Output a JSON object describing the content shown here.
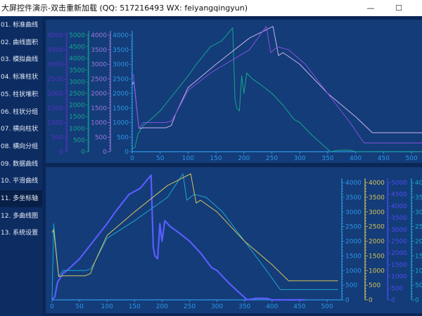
{
  "window": {
    "title": "大屏控件演示-双击重新加载 (QQ: 517216493  WX: feiyangqingyun)",
    "minimize": "—",
    "maximize": "☐"
  },
  "sidebar": {
    "active_index": 10,
    "items": [
      {
        "label": "01. 标准曲线"
      },
      {
        "label": "02. 曲线面积"
      },
      {
        "label": "03. 模拟曲线"
      },
      {
        "label": "04. 标准柱状"
      },
      {
        "label": "05. 柱状堆积"
      },
      {
        "label": "06. 柱状分组"
      },
      {
        "label": "07. 横向柱状"
      },
      {
        "label": "08. 横向分组"
      },
      {
        "label": "09. 数据曲线"
      },
      {
        "label": "10. 平滑曲线"
      },
      {
        "label": "11. 多坐标轴"
      },
      {
        "label": "12. 多曲线图"
      },
      {
        "label": "13. 系统设置"
      }
    ]
  },
  "chart_data": [
    {
      "type": "line",
      "title": "",
      "xlim": [
        0,
        525
      ],
      "x_ticks": [
        0,
        50,
        100,
        150,
        200,
        250,
        300,
        350,
        400,
        450,
        500
      ],
      "y_axes": [
        {
          "side": "left",
          "color": "#5a30c4",
          "max": 4000,
          "ticks": [
            0,
            500,
            1000,
            1500,
            2000,
            2500,
            3000,
            3500,
            4000
          ]
        },
        {
          "side": "left",
          "color": "#17a58c",
          "max": 5000,
          "ticks": [
            0,
            500,
            1000,
            1500,
            2000,
            2500,
            3000,
            3500,
            4000,
            4500,
            5000
          ]
        },
        {
          "side": "left",
          "color": "#9a78dc",
          "max": 4000,
          "ticks": [
            0,
            500,
            1000,
            1500,
            2000,
            2500,
            3000,
            3500,
            4000
          ]
        },
        {
          "side": "left",
          "color": "#2f96e6",
          "max": 4000,
          "ticks": [
            0,
            500,
            1000,
            1500,
            2000,
            2500,
            3000,
            3500,
            4000
          ]
        }
      ],
      "series": [
        {
          "color": "#17a58c",
          "width": 1,
          "x": [
            0,
            5,
            10,
            20,
            30,
            50,
            75,
            100,
            115,
            140,
            160,
            180,
            184,
            187,
            192,
            196,
            200,
            205,
            215,
            230,
            250,
            270,
            290,
            300,
            320,
            340,
            355,
            370,
            390,
            400,
            520
          ],
          "y": [
            100,
            150,
            600,
            900,
            1050,
            1400,
            2000,
            2600,
            3000,
            3600,
            3800,
            4250,
            1800,
            1500,
            1400,
            2600,
            2000,
            2700,
            2500,
            2300,
            2000,
            1600,
            1100,
            1000,
            600,
            250,
            0,
            50,
            50,
            0,
            0
          ]
        },
        {
          "color": "#c9b0ee",
          "width": 1,
          "x": [
            0,
            3,
            12,
            20,
            60,
            70,
            78,
            100,
            150,
            210,
            252,
            262,
            270,
            300,
            350,
            400,
            430,
            520
          ],
          "y": [
            2300,
            2400,
            800,
            820,
            820,
            900,
            1300,
            2200,
            3000,
            3900,
            4300,
            3300,
            3400,
            3000,
            2000,
            1200,
            650,
            650
          ]
        },
        {
          "color": "#8a4fe0",
          "width": 1,
          "x": [
            0,
            2,
            12,
            20,
            60,
            70,
            78,
            100,
            140,
            210,
            240,
            248,
            260,
            280,
            310,
            350,
            390,
            415,
            520
          ],
          "y": [
            2600,
            2650,
            800,
            1000,
            1000,
            1050,
            1300,
            2100,
            2700,
            3500,
            4300,
            3400,
            3600,
            3500,
            3000,
            2000,
            1000,
            300,
            300
          ]
        }
      ]
    },
    {
      "type": "line",
      "title": "",
      "xlim": [
        0,
        525
      ],
      "x_ticks": [
        0,
        50,
        100,
        150,
        200,
        250,
        300,
        350,
        400,
        450,
        500
      ],
      "y_axes": [
        {
          "side": "right",
          "color": "#2f96e6",
          "max": 4000,
          "ticks": [
            0,
            500,
            1000,
            1500,
            2000,
            2500,
            3000,
            3500,
            4000
          ]
        },
        {
          "side": "right",
          "color": "#d6c25a",
          "max": 4000,
          "ticks": [
            0,
            500,
            1000,
            1500,
            2000,
            2500,
            3000,
            3500,
            4000
          ]
        },
        {
          "side": "right",
          "color": "#4e4cf2",
          "max": 5000,
          "ticks": [
            0,
            500,
            1000,
            1500,
            2000,
            2500,
            3000,
            3500,
            4000,
            4500,
            5000
          ]
        },
        {
          "side": "right",
          "color": "#1ea6cf",
          "max": 4000,
          "ticks": [
            0,
            500,
            1000,
            1500,
            2000,
            2500,
            3000,
            3500,
            4000
          ]
        }
      ],
      "series": [
        {
          "color": "#5a5cff",
          "width": 2.2,
          "x": [
            0,
            5,
            10,
            20,
            30,
            50,
            75,
            100,
            115,
            140,
            160,
            180,
            184,
            187,
            192,
            196,
            200,
            205,
            215,
            230,
            250,
            270,
            290,
            300,
            320,
            340,
            355,
            370,
            390,
            400,
            460
          ],
          "y": [
            0,
            100,
            600,
            900,
            1050,
            1400,
            2000,
            2600,
            3000,
            3600,
            3800,
            4250,
            1800,
            1500,
            1400,
            2600,
            2000,
            2700,
            2500,
            2300,
            2000,
            1600,
            1100,
            1000,
            600,
            250,
            0,
            50,
            50,
            0,
            0
          ]
        },
        {
          "color": "#1ea6cf",
          "width": 1,
          "x": [
            0,
            3,
            12,
            20,
            60,
            70,
            78,
            100,
            150,
            210,
            238,
            245,
            258,
            280,
            310,
            350,
            390,
            415,
            520
          ],
          "y": [
            0,
            2600,
            800,
            1000,
            1000,
            1050,
            1300,
            2100,
            2700,
            3500,
            4300,
            3400,
            3600,
            3500,
            3000,
            2000,
            1000,
            350,
            350
          ]
        },
        {
          "color": "#d6c25a",
          "width": 1,
          "x": [
            0,
            3,
            12,
            20,
            60,
            70,
            78,
            100,
            150,
            210,
            252,
            262,
            270,
            300,
            350,
            400,
            430,
            520
          ],
          "y": [
            2300,
            2400,
            800,
            820,
            820,
            900,
            1300,
            2200,
            3000,
            3900,
            4300,
            3300,
            3400,
            3000,
            2000,
            1200,
            650,
            650
          ]
        }
      ]
    }
  ]
}
